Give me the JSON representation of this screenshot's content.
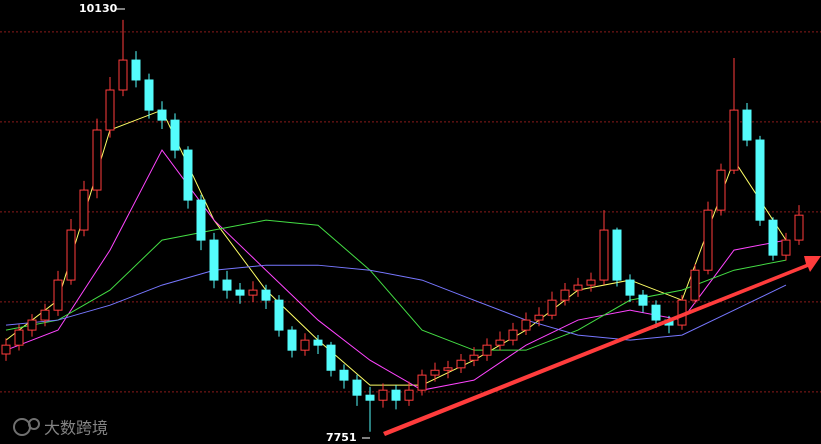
{
  "chart_data": {
    "type": "candlestick",
    "ylim": [
      7680,
      10245
    ],
    "gridlines": [
      10061,
      9541,
      9021,
      8501,
      7981
    ],
    "up_color": "#ff3c3c",
    "down_color": "#54fcfc",
    "candles": [
      [
        8200,
        8290,
        8160,
        8251
      ],
      [
        8251,
        8370,
        8220,
        8338
      ],
      [
        8338,
        8430,
        8300,
        8396
      ],
      [
        8396,
        8490,
        8360,
        8453
      ],
      [
        8453,
        8680,
        8420,
        8627
      ],
      [
        8627,
        8980,
        8600,
        8916
      ],
      [
        8916,
        9200,
        8880,
        9147
      ],
      [
        9147,
        9560,
        9100,
        9494
      ],
      [
        9494,
        9800,
        9450,
        9725
      ],
      [
        9725,
        10130,
        9690,
        9898
      ],
      [
        9898,
        9950,
        9740,
        9783
      ],
      [
        9783,
        9820,
        9560,
        9609
      ],
      [
        9609,
        9660,
        9500,
        9551
      ],
      [
        9551,
        9590,
        9330,
        9378
      ],
      [
        9378,
        9400,
        9040,
        9089
      ],
      [
        9089,
        9120,
        8800,
        8858
      ],
      [
        8858,
        8900,
        8580,
        8627
      ],
      [
        8627,
        8680,
        8520,
        8569
      ],
      [
        8569,
        8610,
        8490,
        8540
      ],
      [
        8540,
        8620,
        8500,
        8569
      ],
      [
        8569,
        8600,
        8460,
        8511
      ],
      [
        8511,
        8540,
        8300,
        8338
      ],
      [
        8338,
        8360,
        8180,
        8222
      ],
      [
        8222,
        8320,
        8190,
        8280
      ],
      [
        8280,
        8310,
        8200,
        8251
      ],
      [
        8251,
        8270,
        8070,
        8106
      ],
      [
        8106,
        8140,
        8000,
        8049
      ],
      [
        8049,
        8080,
        7900,
        7962
      ],
      [
        7962,
        8010,
        7751,
        7933
      ],
      [
        7933,
        8030,
        7890,
        7991
      ],
      [
        7991,
        8020,
        7880,
        7933
      ],
      [
        7933,
        8040,
        7900,
        7991
      ],
      [
        7991,
        8110,
        7960,
        8078
      ],
      [
        8078,
        8150,
        8040,
        8106
      ],
      [
        8106,
        8160,
        8060,
        8120
      ],
      [
        8120,
        8200,
        8090,
        8164
      ],
      [
        8164,
        8240,
        8130,
        8193
      ],
      [
        8193,
        8290,
        8160,
        8251
      ],
      [
        8251,
        8330,
        8220,
        8280
      ],
      [
        8280,
        8380,
        8250,
        8338
      ],
      [
        8338,
        8440,
        8310,
        8396
      ],
      [
        8396,
        8470,
        8360,
        8424
      ],
      [
        8424,
        8560,
        8400,
        8511
      ],
      [
        8511,
        8610,
        8480,
        8569
      ],
      [
        8569,
        8640,
        8530,
        8598
      ],
      [
        8598,
        8670,
        8560,
        8627
      ],
      [
        8627,
        9031,
        8600,
        8916
      ],
      [
        8916,
        8930,
        8590,
        8627
      ],
      [
        8627,
        8660,
        8500,
        8540
      ],
      [
        8540,
        8570,
        8440,
        8482
      ],
      [
        8482,
        8510,
        8350,
        8396
      ],
      [
        8396,
        8420,
        8320,
        8367
      ],
      [
        8367,
        8540,
        8340,
        8511
      ],
      [
        8511,
        8720,
        8490,
        8684
      ],
      [
        8684,
        9080,
        8660,
        9031
      ],
      [
        9031,
        9300,
        9000,
        9262
      ],
      [
        9262,
        9910,
        9240,
        9609
      ],
      [
        9609,
        9650,
        9400,
        9436
      ],
      [
        9436,
        9460,
        8940,
        8973
      ],
      [
        8973,
        8990,
        8740,
        8771
      ],
      [
        8771,
        8900,
        8740,
        8858
      ],
      [
        8858,
        9060,
        8830,
        9002
      ]
    ],
    "series": [
      {
        "color": "#ffff66",
        "x": [
          0,
          4,
          8,
          12,
          16,
          20,
          24,
          28,
          32,
          36,
          40,
          44,
          48,
          52,
          56,
          60
        ],
        "values": [
          8280,
          8511,
          9494,
          9609,
          8973,
          8569,
          8280,
          8020,
          8020,
          8164,
          8338,
          8569,
          8627,
          8511,
          9320,
          8858
        ]
      },
      {
        "color": "#ff44ff",
        "x": [
          0,
          4,
          8,
          12,
          16,
          20,
          24,
          28,
          32,
          36,
          40,
          44,
          48,
          52,
          56,
          60
        ],
        "values": [
          8222,
          8338,
          8800,
          9378,
          8973,
          8684,
          8396,
          8164,
          7991,
          8049,
          8251,
          8396,
          8453,
          8396,
          8800,
          8858
        ]
      },
      {
        "color": "#44dd44",
        "x": [
          0,
          4,
          8,
          12,
          16,
          20,
          24,
          28,
          32,
          36,
          40,
          44,
          48,
          52,
          56,
          60
        ],
        "values": [
          8338,
          8396,
          8569,
          8858,
          8916,
          8973,
          8944,
          8684,
          8338,
          8222,
          8222,
          8338,
          8511,
          8569,
          8684,
          8742
        ]
      },
      {
        "color": "#7777ff",
        "x": [
          0,
          4,
          8,
          12,
          16,
          20,
          24,
          28,
          32,
          36,
          40,
          44,
          48,
          52,
          56,
          60
        ],
        "values": [
          8367,
          8396,
          8482,
          8598,
          8684,
          8713,
          8713,
          8684,
          8627,
          8511,
          8396,
          8309,
          8280,
          8309,
          8453,
          8598
        ]
      }
    ],
    "watermark": "大数跨境"
  }
}
